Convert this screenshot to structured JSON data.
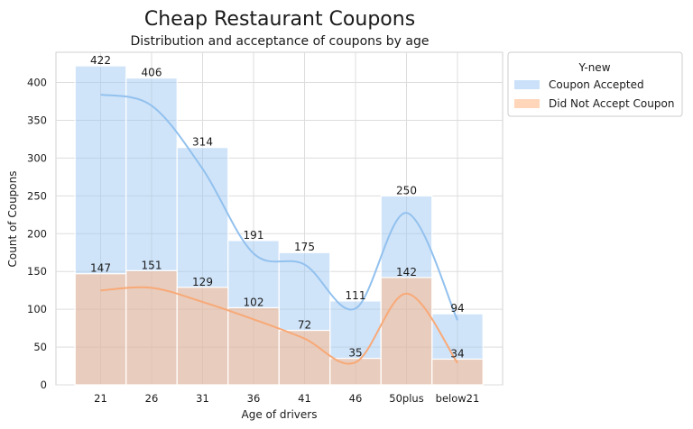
{
  "chart_data": {
    "type": "bar",
    "title": "Cheap Restaurant Coupons",
    "subtitle": "Distribution and acceptance of coupons by age",
    "xlabel": "Age of drivers",
    "ylabel": "Count of Coupons",
    "categories": [
      "21",
      "26",
      "31",
      "36",
      "41",
      "46",
      "50plus",
      "below21"
    ],
    "ylim": [
      0,
      440
    ],
    "yticks": [
      0,
      50,
      100,
      150,
      200,
      250,
      300,
      350,
      400
    ],
    "grid": true,
    "legend": {
      "title": "Y-new",
      "placement": "outside-top-right"
    },
    "series": [
      {
        "name": "Coupon Accepted",
        "values": [
          422,
          406,
          314,
          191,
          175,
          111,
          250,
          94
        ],
        "color": "#a1c9f4"
      },
      {
        "name": "Did Not Accept Coupon",
        "values": [
          147,
          151,
          129,
          102,
          72,
          35,
          142,
          34
        ],
        "color": "#ffb482"
      }
    ],
    "overlay": "kde-lines"
  }
}
